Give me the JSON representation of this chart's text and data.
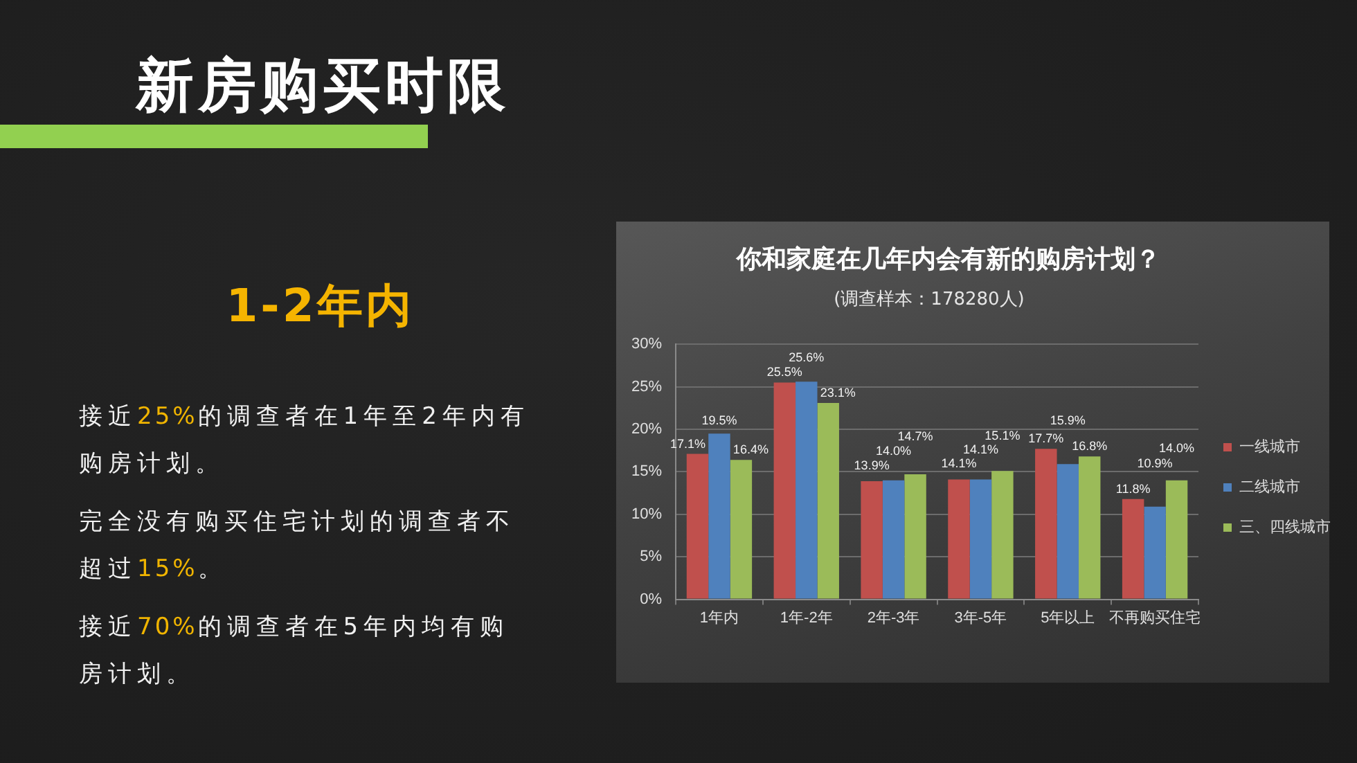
{
  "chart_data": {
    "type": "bar",
    "title": "你和家庭在几年内会有新的购房计划？",
    "subtitle": "(调查样本：178280人)",
    "categories": [
      "1年内",
      "1年-2年",
      "2年-3年",
      "3年-5年",
      "5年以上",
      "不再购买住宅"
    ],
    "series": [
      {
        "name": "一线城市",
        "color": "#c0504d",
        "values": [
          17.1,
          25.5,
          13.9,
          14.1,
          17.7,
          11.8
        ],
        "value_labels": [
          "17.1%",
          "25.5%",
          "13.9%",
          "14.1%",
          "17.7%",
          "11.8%"
        ]
      },
      {
        "name": "二线城市",
        "color": "#4f81bd",
        "values": [
          19.5,
          25.6,
          14.0,
          14.1,
          15.9,
          10.9
        ],
        "value_labels": [
          "19.5%",
          "25.6%",
          "14.0%",
          "14.1%",
          "15.9%",
          "10.9%"
        ]
      },
      {
        "name": "三、四线城市",
        "color": "#9bbb59",
        "values": [
          16.4,
          23.1,
          14.7,
          15.1,
          16.8,
          14.0
        ],
        "value_labels": [
          "16.4%",
          "23.1%",
          "14.7%",
          "15.1%",
          "16.8%",
          "14.0%"
        ]
      }
    ],
    "ylim": [
      0,
      30
    ],
    "yticks": [
      {
        "value": 0,
        "label": "0%"
      },
      {
        "value": 5,
        "label": "5%"
      },
      {
        "value": 10,
        "label": "10%"
      },
      {
        "value": 15,
        "label": "15%"
      },
      {
        "value": 20,
        "label": "20%"
      },
      {
        "value": 25,
        "label": "25%"
      },
      {
        "value": 30,
        "label": "30%"
      }
    ],
    "grid": "y",
    "legend": "right",
    "annotations": [
      "新房购买时限",
      "1-2年内",
      "接近25%的调查者在1年至2年内有购房计划。",
      "完全没有购买住宅计划的调查者不超过15%。",
      "接近70%的调查者在5年内均有购房计划。"
    ]
  }
}
